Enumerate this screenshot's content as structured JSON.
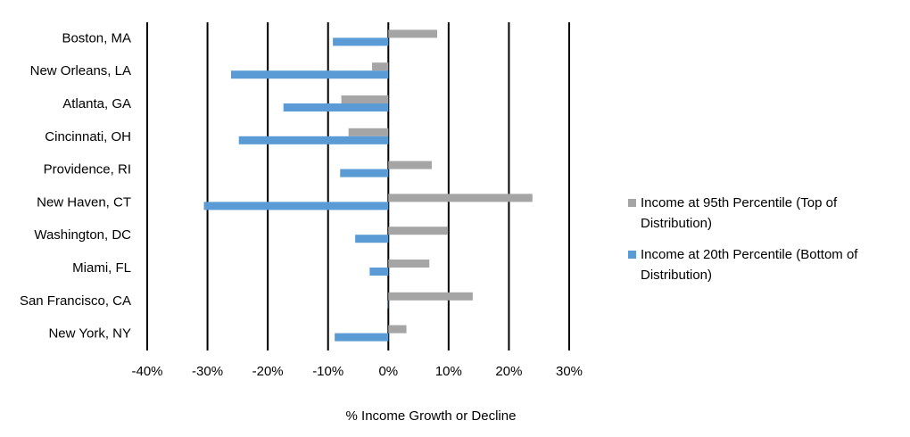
{
  "chart_data": {
    "type": "bar",
    "orientation": "horizontal",
    "xlabel": "% Income Growth or Decline",
    "categories": [
      "Boston, MA",
      "New Orleans, LA",
      "Atlanta, GA",
      "Cincinnati, OH",
      "Providence, RI",
      "New Haven, CT",
      "Washington, DC",
      "Miami, FL",
      "San Francisco, CA",
      "New York, NY"
    ],
    "series": [
      {
        "name": "Income at 95th Percentile (Top of Distribution)",
        "color": "#a5a5a5",
        "values": [
          8.1,
          -2.7,
          -7.8,
          -6.6,
          7.2,
          23.9,
          9.9,
          6.8,
          14.0,
          3.0
        ]
      },
      {
        "name": "Income at 20th Percentile (Bottom of Distribution)",
        "color": "#5b9bd5",
        "values": [
          -9.2,
          -26.1,
          -17.4,
          -24.8,
          -8.0,
          -30.6,
          -5.5,
          -3.1,
          -0.1,
          -8.9
        ]
      }
    ],
    "xlim": [
      -40,
      30
    ],
    "xticks": [
      {
        "value": -40,
        "label": "-40%"
      },
      {
        "value": -30,
        "label": "-30%"
      },
      {
        "value": -20,
        "label": "-20%"
      },
      {
        "value": -10,
        "label": "-10%"
      },
      {
        "value": 0,
        "label": "0%"
      },
      {
        "value": 10,
        "label": "10%"
      },
      {
        "value": 20,
        "label": "20%"
      },
      {
        "value": 30,
        "label": "30%"
      }
    ],
    "grid": true,
    "legend": "right"
  }
}
